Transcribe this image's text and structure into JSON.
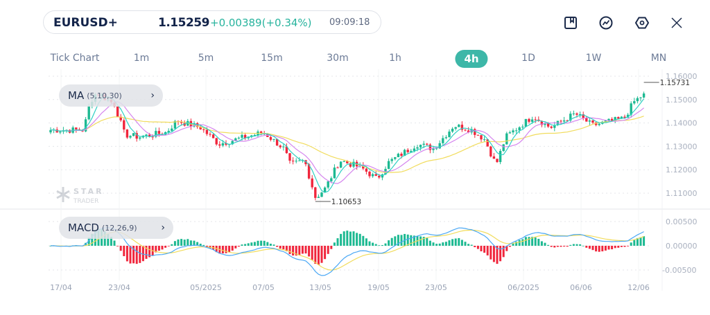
{
  "header": {
    "symbol": "EURUSD+",
    "price": "1.15259",
    "change": "+0.00389(+0.34%)",
    "time": "09:09:18",
    "icons": [
      "bookmark-icon",
      "indicator-chart-icon",
      "settings-hexagon-icon",
      "close-icon"
    ]
  },
  "timeframes": [
    {
      "label": "Tick Chart",
      "active": false
    },
    {
      "label": "1m",
      "active": false
    },
    {
      "label": "5m",
      "active": false
    },
    {
      "label": "15m",
      "active": false
    },
    {
      "label": "30m",
      "active": false
    },
    {
      "label": "1h",
      "active": false
    },
    {
      "label": "4h",
      "active": true
    },
    {
      "label": "1D",
      "active": false
    },
    {
      "label": "1W",
      "active": false
    },
    {
      "label": "MN",
      "active": false
    }
  ],
  "indicators": {
    "main": {
      "name": "MA",
      "params": "(5,10,30)"
    },
    "sub": {
      "name": "MACD",
      "params": "(12,26,9)"
    }
  },
  "watermark": {
    "line1": "STAR",
    "line2": "TRADER"
  },
  "colors": {
    "up": "#1cb991",
    "down": "#f0263c",
    "ma5": "#2fd0c4",
    "ma10": "#d585ee",
    "ma30": "#f1dc5c",
    "macd": "#4ba8f5",
    "signal": "#f1dc5c",
    "accent": "#3db7a8"
  },
  "chart_data": {
    "type": "candlestick",
    "interval": "4h",
    "price_axis": {
      "ticks": [
        "1.16000",
        "1.15000",
        "1.14000",
        "1.13000",
        "1.12000",
        "1.11000"
      ],
      "ylim": [
        1.1035,
        1.1605
      ]
    },
    "macd_axis": {
      "ticks": [
        "0.00500",
        "0.00000",
        "-0.00500"
      ],
      "ylim": [
        -0.0065,
        0.0072
      ]
    },
    "x_ticks": [
      {
        "label": "17/04",
        "date": "2025-04-17"
      },
      {
        "label": "23/04",
        "date": "2025-04-23"
      },
      {
        "label": "05/2025",
        "date": "2025-05-01"
      },
      {
        "label": "07/05",
        "date": "2025-05-07"
      },
      {
        "label": "13/05",
        "date": "2025-05-13"
      },
      {
        "label": "19/05",
        "date": "2025-05-19"
      },
      {
        "label": "23/05",
        "date": "2025-05-23"
      },
      {
        "label": "06/2025",
        "date": "2025-06-01"
      },
      {
        "label": "06/06",
        "date": "2025-06-06"
      },
      {
        "label": "12/06",
        "date": "2025-06-12"
      }
    ],
    "annotations": {
      "high": "1.15731",
      "low": "1.10653"
    },
    "close_path": [
      {
        "date": "2025-04-15T20:00",
        "close": 1.137
      },
      {
        "date": "2025-04-19T08:00",
        "close": 1.137
      },
      {
        "date": "2025-04-20T00:00",
        "close": 1.149
      },
      {
        "date": "2025-04-20T16:00",
        "close": 1.153
      },
      {
        "date": "2025-04-22T12:00",
        "close": 1.148
      },
      {
        "date": "2025-04-23T12:00",
        "close": 1.135
      },
      {
        "date": "2025-04-24T20:00",
        "close": 1.134
      },
      {
        "date": "2025-04-27T08:00",
        "close": 1.136
      },
      {
        "date": "2025-04-28T08:00",
        "close": 1.141
      },
      {
        "date": "2025-04-30T12:00",
        "close": 1.138
      },
      {
        "date": "2025-05-02T08:00",
        "close": 1.131
      },
      {
        "date": "2025-05-04T04:00",
        "close": 1.133
      },
      {
        "date": "2025-05-07T00:00",
        "close": 1.136
      },
      {
        "date": "2025-05-09T04:00",
        "close": 1.129
      },
      {
        "date": "2025-05-09T20:00",
        "close": 1.122
      },
      {
        "date": "2025-05-11T08:00",
        "close": 1.124
      },
      {
        "date": "2025-05-12T12:00",
        "close": 1.108
      },
      {
        "date": "2025-05-13T12:00",
        "close": 1.112
      },
      {
        "date": "2025-05-15T00:00",
        "close": 1.124
      },
      {
        "date": "2025-05-17T04:00",
        "close": 1.121
      },
      {
        "date": "2025-05-18T20:00",
        "close": 1.116
      },
      {
        "date": "2025-05-19T16:00",
        "close": 1.123
      },
      {
        "date": "2025-05-21T16:00",
        "close": 1.131
      },
      {
        "date": "2025-05-22T20:00",
        "close": 1.129
      },
      {
        "date": "2025-05-24T20:00",
        "close": 1.139
      },
      {
        "date": "2025-05-26T16:00",
        "close": 1.137
      },
      {
        "date": "2025-05-28T00:00",
        "close": 1.133
      },
      {
        "date": "2025-05-29T04:00",
        "close": 1.122
      },
      {
        "date": "2025-05-30T04:00",
        "close": 1.134
      },
      {
        "date": "2025-06-01T20:00",
        "close": 1.143
      },
      {
        "date": "2025-06-03T08:00",
        "close": 1.138
      },
      {
        "date": "2025-06-05T12:00",
        "close": 1.144
      },
      {
        "date": "2025-06-07T04:00",
        "close": 1.139
      },
      {
        "date": "2025-06-10T12:00",
        "close": 1.142
      },
      {
        "date": "2025-06-11T12:00",
        "close": 1.149
      },
      {
        "date": "2025-06-12T16:00",
        "close": 1.15259
      }
    ]
  }
}
